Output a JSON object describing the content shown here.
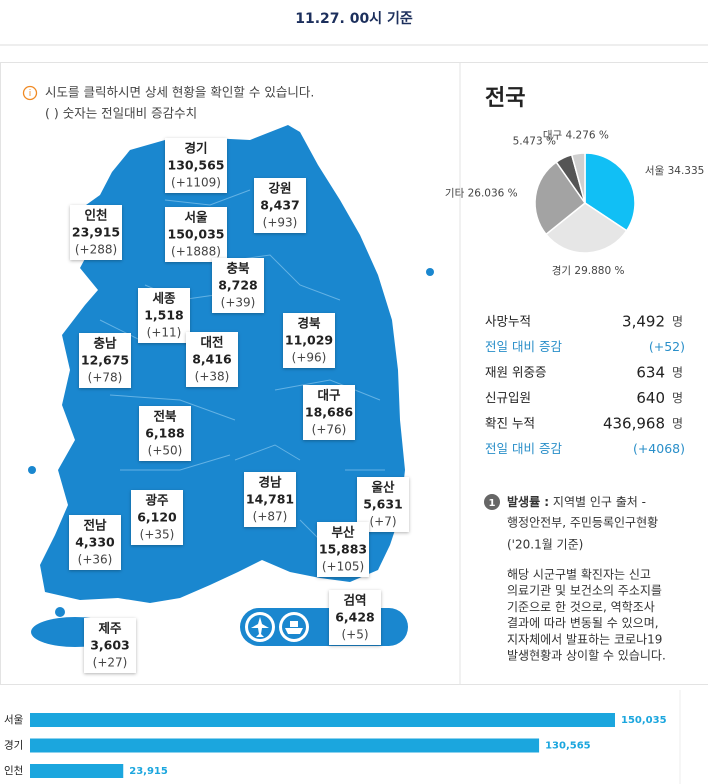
{
  "header": {
    "time": "11.27. 00시 기준"
  },
  "notice": {
    "line1": "시도를 클릭하시면 상세 현황을 확인할 수 있습니다.",
    "line2": "( ) 숫자는 전일대비 증감수치"
  },
  "regions": [
    {
      "name": "경기",
      "count": "130,565",
      "change": "(+1109)"
    },
    {
      "name": "강원",
      "count": "8,437",
      "change": "(+93)"
    },
    {
      "name": "인천",
      "count": "23,915",
      "change": "(+288)"
    },
    {
      "name": "서울",
      "count": "150,035",
      "change": "(+1888)"
    },
    {
      "name": "충북",
      "count": "8,728",
      "change": "(+39)"
    },
    {
      "name": "세종",
      "count": "1,518",
      "change": "(+11)"
    },
    {
      "name": "충남",
      "count": "12,675",
      "change": "(+78)"
    },
    {
      "name": "대전",
      "count": "8,416",
      "change": "(+38)"
    },
    {
      "name": "경북",
      "count": "11,029",
      "change": "(+96)"
    },
    {
      "name": "대구",
      "count": "18,686",
      "change": "(+76)"
    },
    {
      "name": "전북",
      "count": "6,188",
      "change": "(+50)"
    },
    {
      "name": "경남",
      "count": "14,781",
      "change": "(+87)"
    },
    {
      "name": "울산",
      "count": "5,631",
      "change": "(+7)"
    },
    {
      "name": "광주",
      "count": "6,120",
      "change": "(+35)"
    },
    {
      "name": "전남",
      "count": "4,330",
      "change": "(+36)"
    },
    {
      "name": "부산",
      "count": "15,883",
      "change": "(+105)"
    },
    {
      "name": "제주",
      "count": "3,603",
      "change": "(+27)"
    },
    {
      "name": "검역",
      "count": "6,428",
      "change": "(+5)"
    }
  ],
  "summary": {
    "title": "전국",
    "rows": [
      {
        "label": "사망누적",
        "value": "3,492",
        "unit": "명"
      },
      {
        "label": "전일 대비 증감",
        "value": "(+52)",
        "highlight": true
      },
      {
        "label": "재원 위중증",
        "value": "634",
        "unit": "명"
      },
      {
        "label": "신규입원",
        "value": "640",
        "unit": "명"
      },
      {
        "label": "확진 누적",
        "value": "436,968",
        "unit": "명"
      },
      {
        "label": "전일 대비 증감",
        "value": "(+4068)",
        "highlight": true
      }
    ]
  },
  "note": {
    "number": "1",
    "title": "발생률 :",
    "lines": [
      " 지역별 인구 출처 -",
      "행정안전부, 주민등록인구현황",
      "('20.1월 기준)"
    ],
    "body": [
      "해당 시군구별 확진자는 신고",
      "의료기관 및 보건소의 주소지를",
      "기준으로 한 것으로, 역학조사",
      "결과에 따라 변동될 수 있으며,",
      "지자체에서 발표하는 코로나19",
      "발생현황과 상이할 수 있습니다."
    ]
  },
  "chart_data": [
    {
      "type": "pie",
      "categories": [
        "서울",
        "경기",
        "기타",
        null,
        "대구"
      ],
      "values": [
        34.335,
        29.88,
        26.036,
        5.473,
        4.276
      ],
      "value_labels": [
        "34.335 %",
        "29.880 %",
        "26.036 %",
        "5.473 %",
        "4.276 %"
      ],
      "colors": [
        "#11bff5",
        "#e6e6e6",
        "#a3a3a3",
        "#555555",
        "#cfcfcf"
      ]
    },
    {
      "type": "bar",
      "orientation": "horizontal",
      "categories": [
        "서울",
        "경기",
        "인천"
      ],
      "values": [
        150035,
        130565,
        23915
      ],
      "value_labels": [
        "150,035",
        "130,565",
        "23,915"
      ],
      "color": "#1ba6de"
    }
  ]
}
